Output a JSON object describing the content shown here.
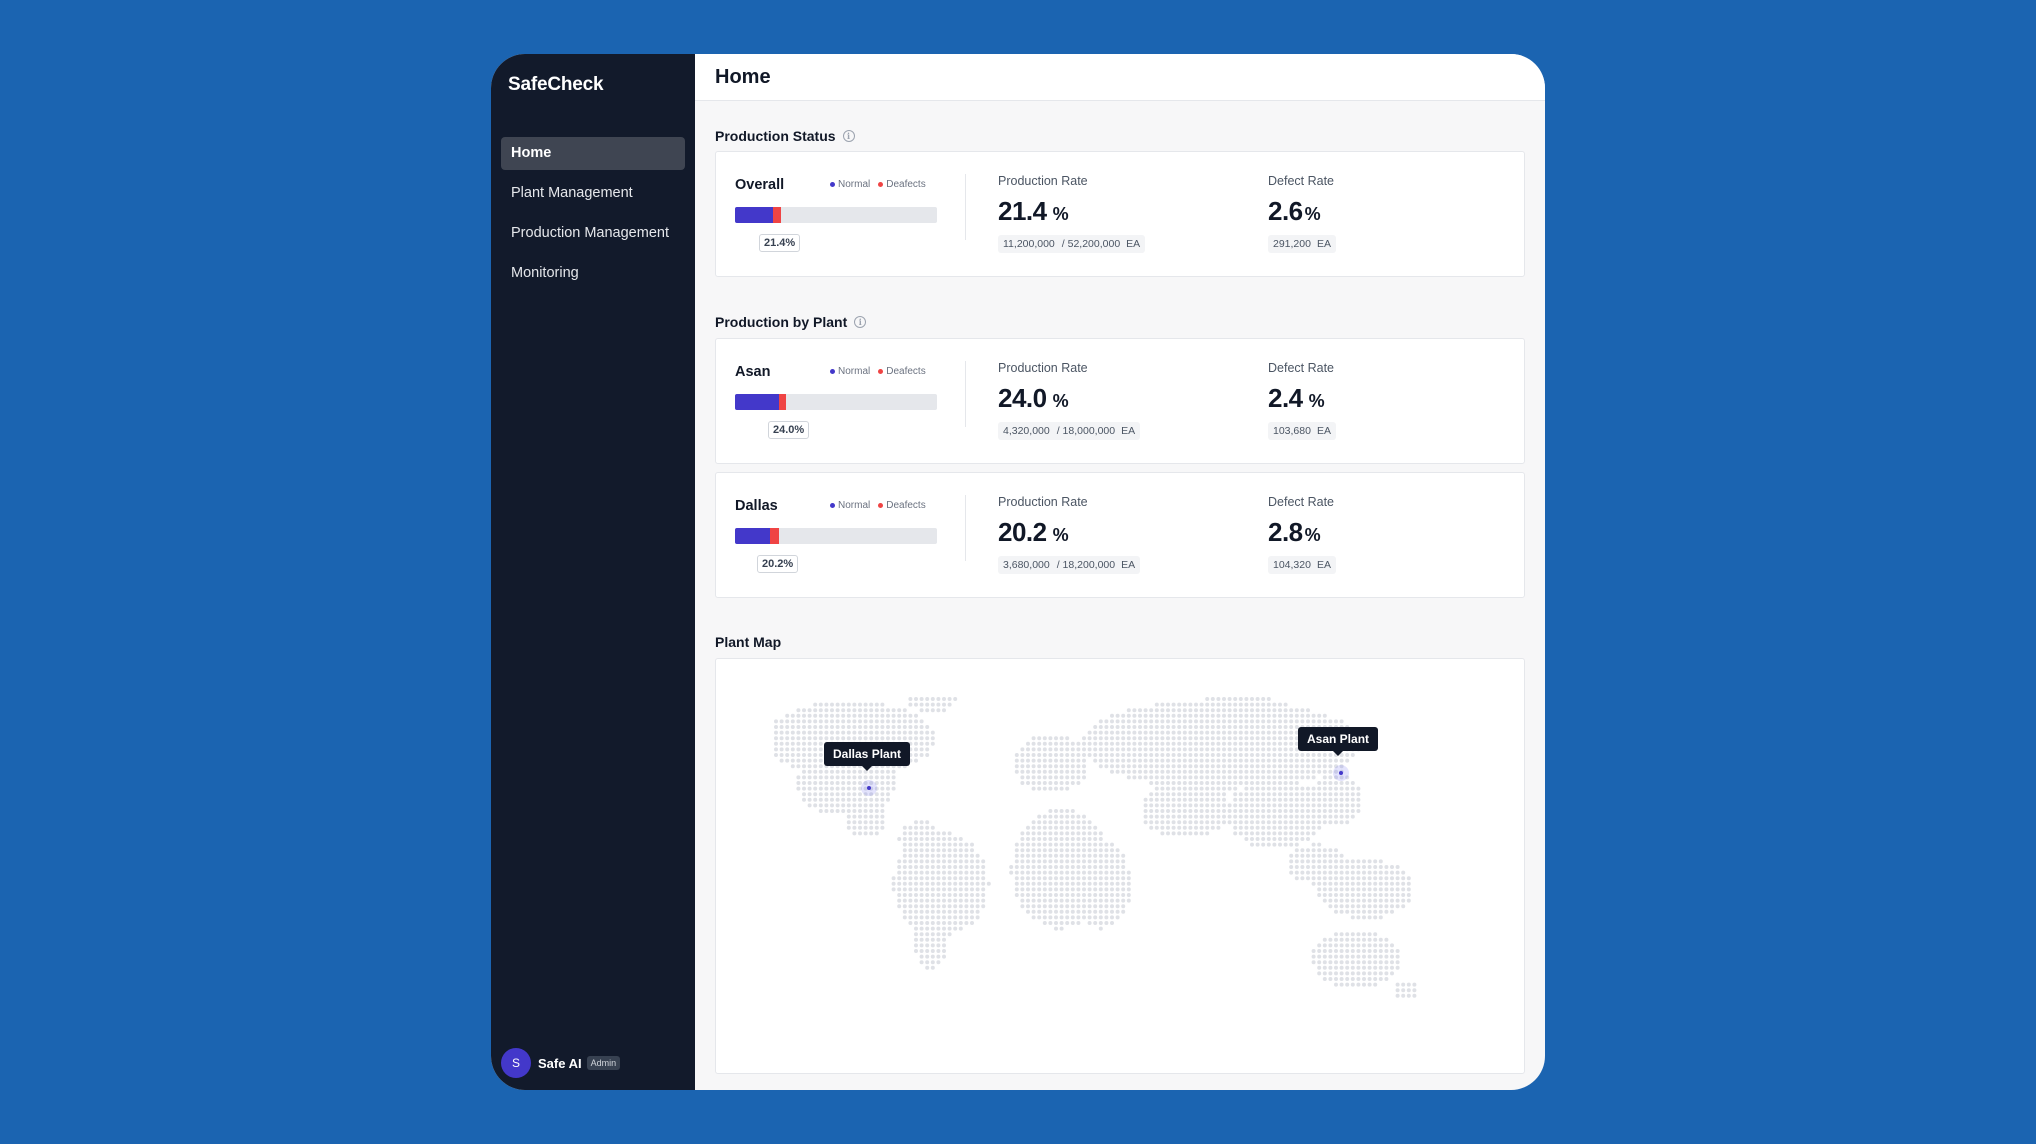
{
  "app": {
    "brand": "SafeCheck"
  },
  "sidebar": {
    "items": [
      {
        "label": "Home",
        "active": true
      },
      {
        "label": "Plant Management",
        "active": false
      },
      {
        "label": "Production Management",
        "active": false
      },
      {
        "label": "Monitoring",
        "active": false
      }
    ],
    "user": {
      "initial": "S",
      "name": "Safe AI",
      "role": "Admin"
    }
  },
  "header": {
    "title": "Home"
  },
  "production_status": {
    "title": "Production Status",
    "card": {
      "name": "Overall",
      "legend_normal": "Normal",
      "legend_defects": "Deafects",
      "progress_percent": 21.4,
      "defect_percent": 2.6,
      "progress_label": "21.4%",
      "production_rate_label": "Production Rate",
      "production_rate_value": "21.4",
      "production_rate_unit": "%",
      "produced": "11,200,000",
      "target": "/ 52,200,000",
      "unit_ea": "EA",
      "defect_rate_label": "Defect Rate",
      "defect_rate_value": "2.6",
      "defect_rate_unit": "%",
      "defect_count": "291,200",
      "defect_unit_ea": "EA"
    }
  },
  "production_by_plant": {
    "title": "Production by Plant",
    "plants": [
      {
        "name": "Asan",
        "legend_normal": "Normal",
        "legend_defects": "Deafects",
        "progress_percent": 24.0,
        "defect_percent": 2.4,
        "progress_label": "24.0%",
        "production_rate_label": "Production Rate",
        "production_rate_value": "24.0",
        "production_rate_unit": "%",
        "produced": "4,320,000",
        "target": "/ 18,000,000",
        "unit_ea": "EA",
        "defect_rate_label": "Defect Rate",
        "defect_rate_value": "2.4",
        "defect_rate_unit": "%",
        "defect_count": "103,680",
        "defect_unit_ea": "EA"
      },
      {
        "name": "Dallas",
        "legend_normal": "Normal",
        "legend_defects": "Deafects",
        "progress_percent": 20.2,
        "defect_percent": 2.8,
        "progress_label": "20.2%",
        "production_rate_label": "Production Rate",
        "production_rate_value": "20.2",
        "production_rate_unit": "%",
        "produced": "3,680,000",
        "target": "/ 18,200,000",
        "unit_ea": "EA",
        "defect_rate_label": "Defect Rate",
        "defect_rate_value": "2.8",
        "defect_rate_unit": "%",
        "defect_count": "104,320",
        "defect_unit_ea": "EA"
      }
    ]
  },
  "plant_map": {
    "title": "Plant Map",
    "markers": [
      {
        "label": "Dallas Plant"
      },
      {
        "label": "Asan Plant"
      }
    ]
  },
  "colors": {
    "background": "#1b64b1",
    "sidebar": "#121a2b",
    "normal": "#4338ca",
    "defect": "#ef4444"
  }
}
